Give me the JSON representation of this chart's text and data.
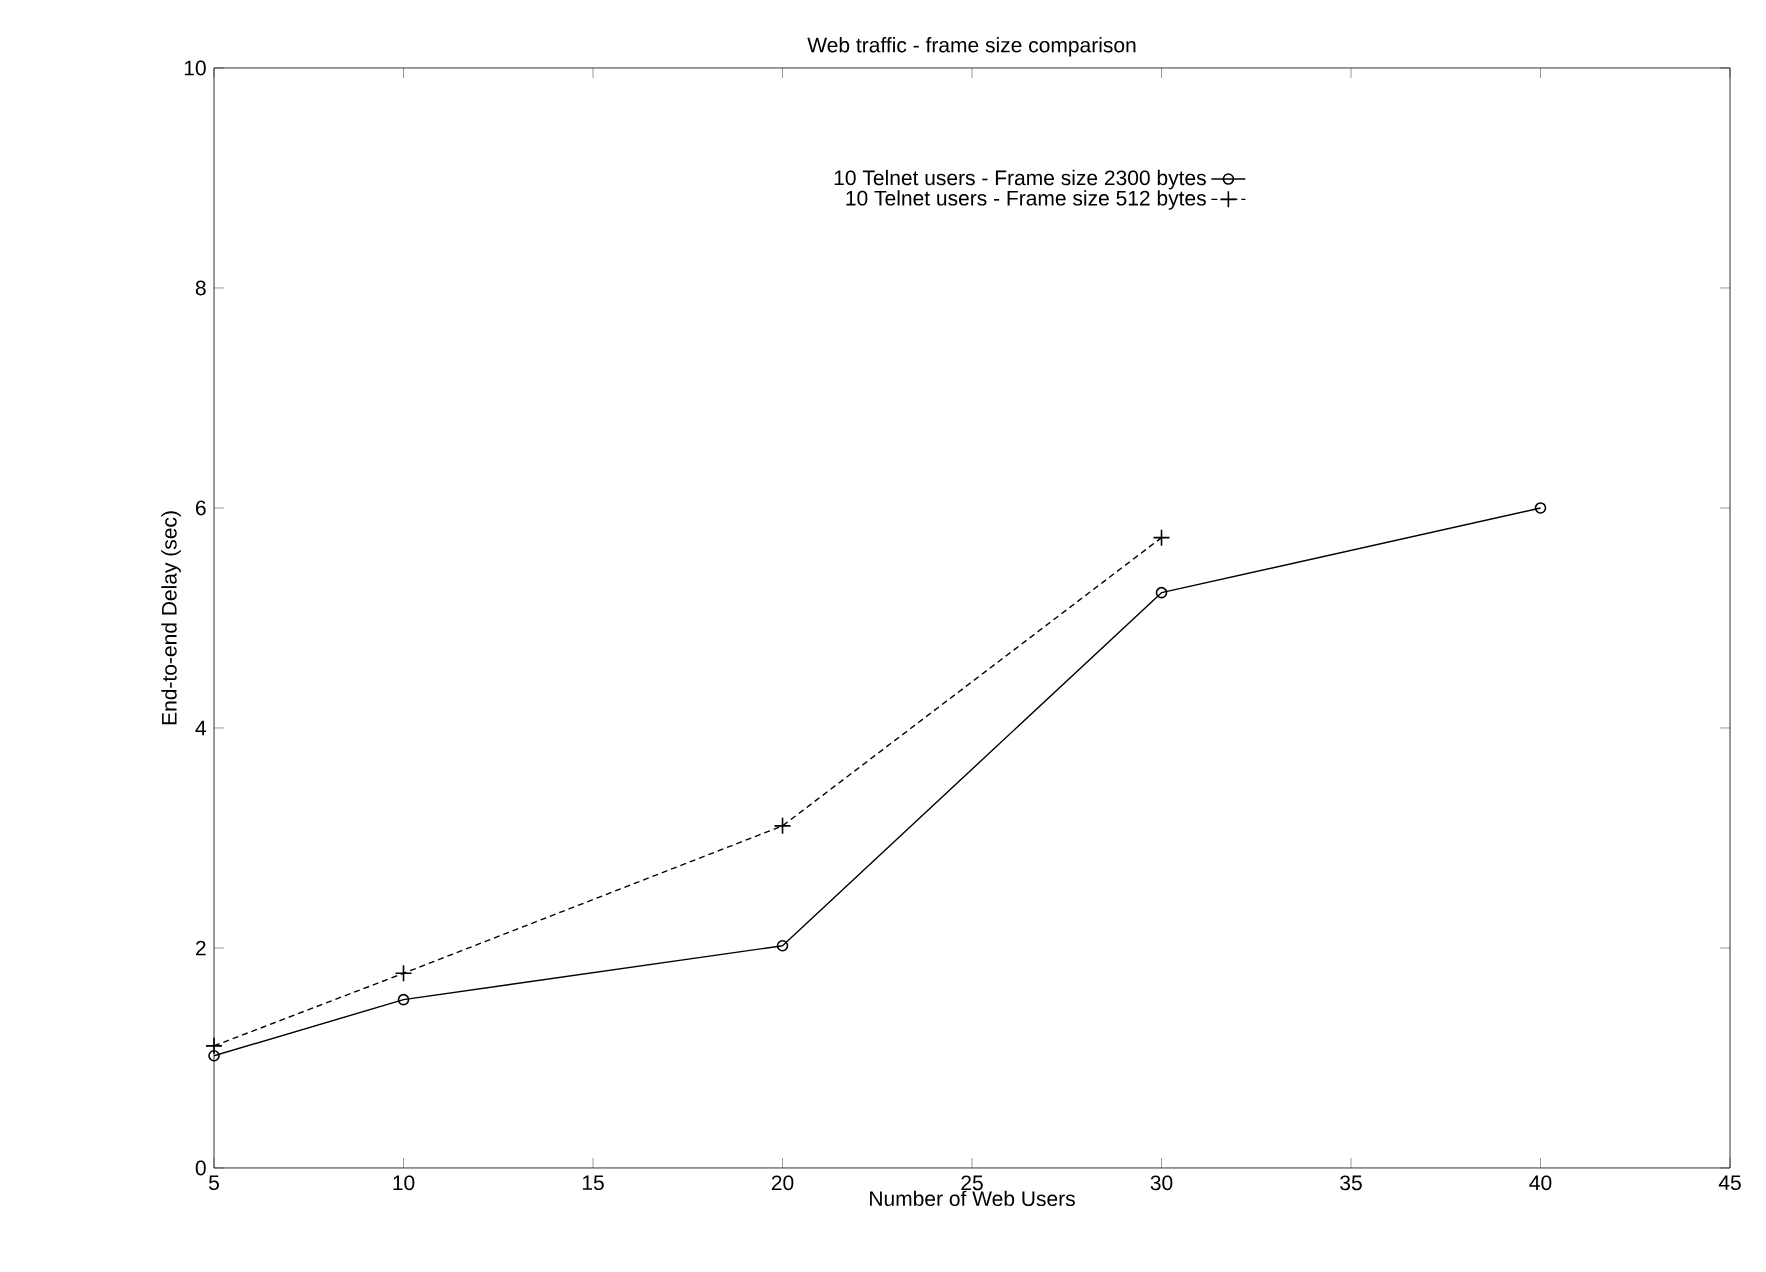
{
  "chart_data": {
    "type": "line",
    "title": "Web traffic - frame size comparison",
    "xlabel": "Number of Web Users",
    "ylabel": "End-to-end Delay (sec)",
    "x": [
      5,
      10,
      20,
      30,
      40
    ],
    "series": [
      {
        "name": "10 Telnet users - Frame size 2300 bytes",
        "color": "#000000",
        "values": [
          1.02,
          1.53,
          2.02,
          5.23,
          6.0
        ],
        "marker": "circle",
        "line_style": "solid"
      },
      {
        "name": "10 Telnet users - Frame size 512 bytes",
        "color": "#000000",
        "values": [
          1.11,
          1.77,
          3.11,
          5.73,
          null
        ],
        "marker": "cross",
        "line_style": "dashed"
      }
    ],
    "xlim": [
      5,
      45
    ],
    "xticks": [
      5,
      10,
      15,
      20,
      25,
      30,
      35,
      40,
      45
    ],
    "ylim": [
      0,
      10
    ],
    "yticks": [
      0,
      2,
      4,
      6,
      8,
      10
    ],
    "legend": "top right"
  }
}
